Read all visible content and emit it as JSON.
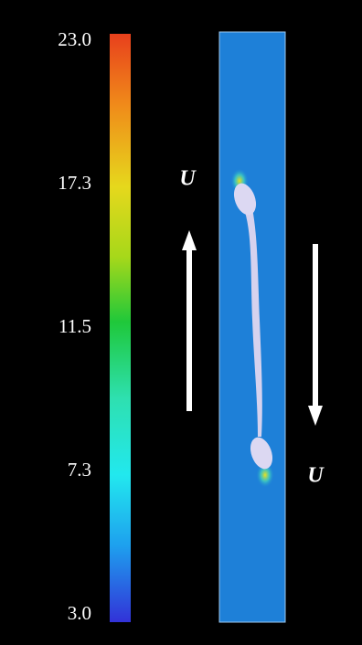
{
  "colorbar": {
    "labels": [
      "23.0",
      "17.3",
      "11.5",
      "7.3",
      "3.0"
    ]
  },
  "annotations": {
    "velocity_left": "U",
    "velocity_right": "U"
  }
}
